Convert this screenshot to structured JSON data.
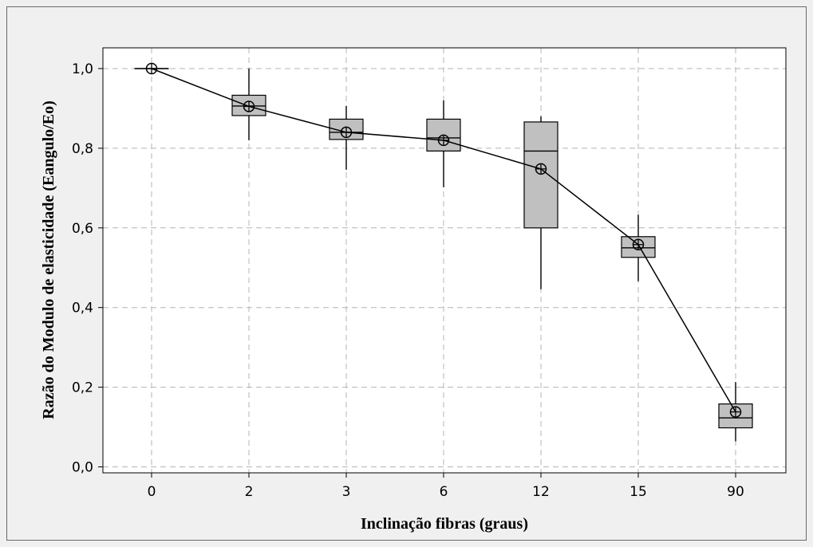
{
  "chart_data": {
    "type": "boxplot",
    "title": "",
    "xlabel": "Inclinação fibras (graus)",
    "ylabel": "Razão do Modulo de elasticidade (Eangulo/Eo)",
    "ylim": [
      0.0,
      1.0
    ],
    "yticks": [
      0.0,
      0.2,
      0.4,
      0.6,
      0.8,
      1.0
    ],
    "ytick_labels": [
      "0,0",
      "0,2",
      "0,4",
      "0,6",
      "0,8",
      "1,0"
    ],
    "categories": [
      "0",
      "2",
      "3",
      "6",
      "12",
      "15",
      "90"
    ],
    "boxes": [
      {
        "category": "0",
        "min": 1.0,
        "q1": 1.0,
        "median": 1.0,
        "q3": 1.0,
        "max": 1.0,
        "mean": 1.0
      },
      {
        "category": "2",
        "min": 0.82,
        "q1": 0.882,
        "median": 0.906,
        "q3": 0.933,
        "max": 1.0,
        "mean": 0.905
      },
      {
        "category": "3",
        "min": 0.746,
        "q1": 0.822,
        "median": 0.84,
        "q3": 0.873,
        "max": 0.906,
        "mean": 0.84
      },
      {
        "category": "6",
        "min": 0.702,
        "q1": 0.793,
        "median": 0.826,
        "q3": 0.873,
        "max": 0.92,
        "mean": 0.82
      },
      {
        "category": "12",
        "min": 0.446,
        "q1": 0.6,
        "median": 0.793,
        "q3": 0.866,
        "max": 0.88,
        "mean": 0.748
      },
      {
        "category": "15",
        "min": 0.466,
        "q1": 0.526,
        "median": 0.55,
        "q3": 0.578,
        "max": 0.633,
        "mean": 0.558
      },
      {
        "category": "90",
        "min": 0.064,
        "q1": 0.098,
        "median": 0.123,
        "q3": 0.158,
        "max": 0.213,
        "mean": 0.138
      }
    ],
    "mean_line": true,
    "grid": true,
    "legend": "none",
    "colors": {
      "box_fill": "#c0c0c0",
      "line": "#000000",
      "grid": "#b4b4b4",
      "plot_bg": "#ffffff",
      "frame_bg": "#f0f0f0"
    }
  }
}
